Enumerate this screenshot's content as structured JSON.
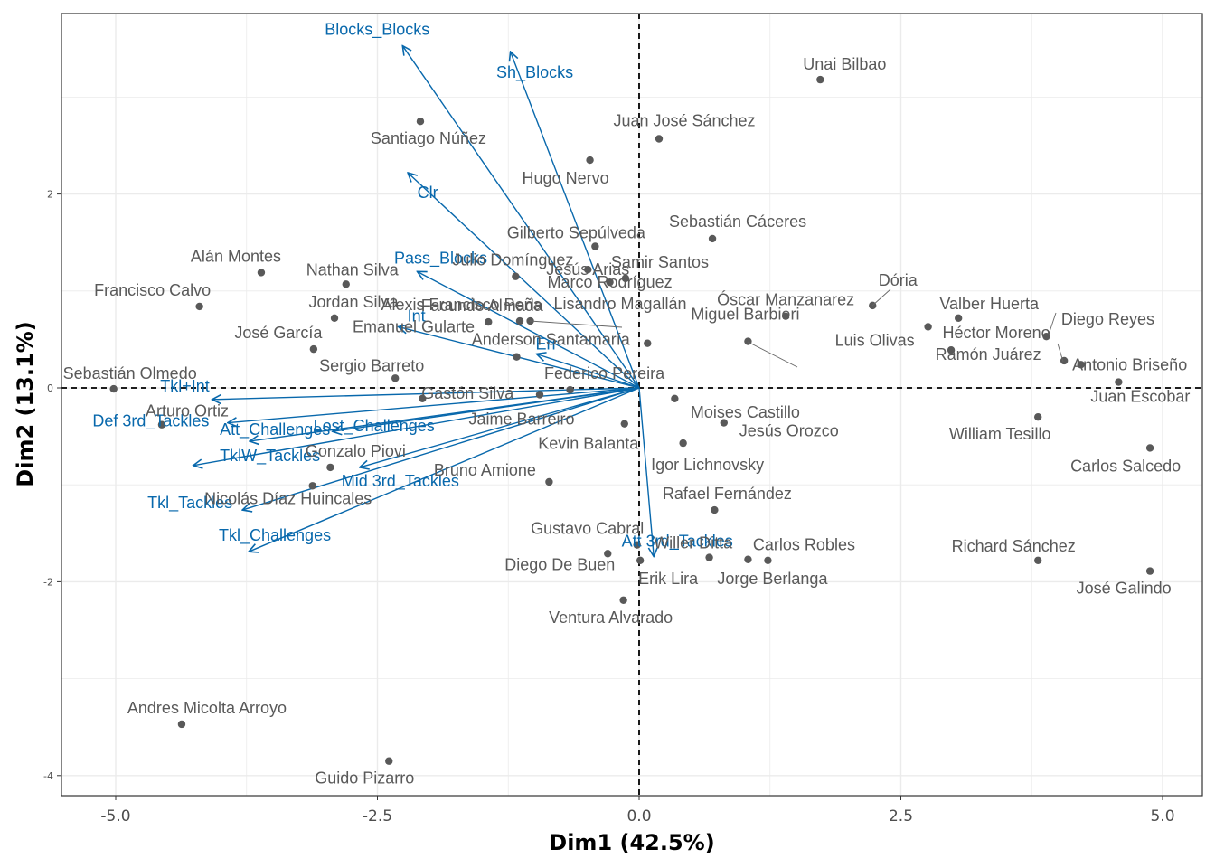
{
  "chart_data": {
    "type": "scatter",
    "subtype": "pca-biplot",
    "title": "",
    "xlabel": "Dim1 (42.5%)",
    "ylabel": "Dim2 (13.1%)",
    "xlim": [
      -5.5,
      5.4
    ],
    "ylim": [
      -4.2,
      3.85
    ],
    "x_ticks": [
      -5.0,
      -2.5,
      0.0,
      2.5,
      5.0
    ],
    "x_tick_labels": [
      "-5.0",
      "-2.5",
      "0.0",
      "2.5",
      "5.0"
    ],
    "y_ticks": [
      -4,
      -2,
      0,
      2
    ],
    "y_tick_labels": [
      "-4",
      "-2",
      "0",
      "2"
    ],
    "grid": true,
    "colors": {
      "points": "#595959",
      "labels": "#666666",
      "arrows": "#0868ac",
      "origin_lines": "#000000",
      "grid": "#ebebeb"
    },
    "points": [
      {
        "name": "Unai Bilbao",
        "x": 1.73,
        "y": 3.18
      },
      {
        "name": "Juan José Sánchez",
        "x": 0.19,
        "y": 2.57
      },
      {
        "name": "Santiago Núñez",
        "x": -2.09,
        "y": 2.75
      },
      {
        "name": "Hugo Nervo",
        "x": -0.47,
        "y": 2.35
      },
      {
        "name": "Gilberto Sepúlveda",
        "x": -0.42,
        "y": 1.46
      },
      {
        "name": "Sebastián Cáceres",
        "x": 0.7,
        "y": 1.54
      },
      {
        "name": "Julio Domínguez",
        "x": -1.18,
        "y": 1.15
      },
      {
        "name": "Samir Santos",
        "x": -0.13,
        "y": 1.13
      },
      {
        "name": "Jesús Arias",
        "x": -0.49,
        "y": 1.22
      },
      {
        "name": "Marco Rodríguez",
        "x": -0.28,
        "y": 1.09
      },
      {
        "name": "Alán Montes",
        "x": -3.61,
        "y": 1.19
      },
      {
        "name": "Nathan Silva",
        "x": -2.8,
        "y": 1.07
      },
      {
        "name": "Francisco Calvo",
        "x": -4.2,
        "y": 0.84
      },
      {
        "name": "Jordan Silva",
        "x": -2.91,
        "y": 0.72
      },
      {
        "name": "Facundo Almada",
        "x": -1.44,
        "y": 0.68
      },
      {
        "name": "Lisandro Magallán",
        "x": -1.14,
        "y": 0.69
      },
      {
        "name": "Alexis Francisco Peña",
        "x": -1.04,
        "y": 0.69
      },
      {
        "name": "Óscar Manzanarez",
        "x": 1.4,
        "y": 0.74
      },
      {
        "name": "Dória",
        "x": 2.23,
        "y": 0.85
      },
      {
        "name": "Valber Huerta",
        "x": 3.05,
        "y": 0.72
      },
      {
        "name": "Luis Olivas",
        "x": 2.76,
        "y": 0.63
      },
      {
        "name": "Diego Reyes",
        "x": 3.89,
        "y": 0.53
      },
      {
        "name": "Héctor Moreno",
        "x": 2.98,
        "y": 0.39
      },
      {
        "name": "Antonio Briseño",
        "x": 4.22,
        "y": 0.24
      },
      {
        "name": "Ramón Juárez",
        "x": 4.06,
        "y": 0.28
      },
      {
        "name": "Juan Escobar",
        "x": 4.58,
        "y": 0.06
      },
      {
        "name": "José García",
        "x": -3.11,
        "y": 0.4
      },
      {
        "name": "Emanuel Gularte",
        "x": -1.17,
        "y": 0.32
      },
      {
        "name": "Anderson Santamaría",
        "x": 0.08,
        "y": 0.46
      },
      {
        "name": "Miguel Barbieri",
        "x": 1.04,
        "y": 0.48
      },
      {
        "name": "Sergio Barreto",
        "x": -2.33,
        "y": 0.1
      },
      {
        "name": "Federico Pereira",
        "x": -0.66,
        "y": -0.02
      },
      {
        "name": "Sebastián Olmedo",
        "x": -5.02,
        "y": -0.01
      },
      {
        "name": "Gastón Silva",
        "x": -2.07,
        "y": -0.11
      },
      {
        "name": "Jaime Barreiro",
        "x": -0.95,
        "y": -0.07
      },
      {
        "name": "Moises Castillo",
        "x": 0.34,
        "y": -0.11
      },
      {
        "name": "Arturo Ortiz",
        "x": -4.56,
        "y": -0.38
      },
      {
        "name": "Kevin Balanta",
        "x": -0.14,
        "y": -0.37
      },
      {
        "name": "Jesús Orozco",
        "x": 0.81,
        "y": -0.36
      },
      {
        "name": "William Tesillo",
        "x": 3.81,
        "y": -0.3
      },
      {
        "name": "Igor Lichnovsky",
        "x": 0.42,
        "y": -0.57
      },
      {
        "name": "Carlos Salcedo",
        "x": 4.88,
        "y": -0.62
      },
      {
        "name": "Gonzalo Piovi",
        "x": -2.95,
        "y": -0.82
      },
      {
        "name": "Bruno Amione",
        "x": -0.86,
        "y": -0.97
      },
      {
        "name": "Nicolás Díaz Huincales",
        "x": -3.12,
        "y": -1.01
      },
      {
        "name": "Rafael Fernández",
        "x": 0.72,
        "y": -1.26
      },
      {
        "name": "Gustavo Cabral",
        "x": -0.02,
        "y": -1.62
      },
      {
        "name": "Willer Ditta",
        "x": 0.67,
        "y": -1.75
      },
      {
        "name": "Carlos Robles",
        "x": 1.04,
        "y": -1.77
      },
      {
        "name": "Jorge Berlanga",
        "x": 1.23,
        "y": -1.78
      },
      {
        "name": "Diego De Buen",
        "x": -0.3,
        "y": -1.71
      },
      {
        "name": "Erik Lira",
        "x": 0.01,
        "y": -1.78
      },
      {
        "name": "Richard Sánchez",
        "x": 3.81,
        "y": -1.78
      },
      {
        "name": "José Galindo",
        "x": 4.88,
        "y": -1.89
      },
      {
        "name": "Ventura Alvarado",
        "x": -0.15,
        "y": -2.19
      },
      {
        "name": "Andres Micolta Arroyo",
        "x": -4.37,
        "y": -3.47
      },
      {
        "name": "Guido Pizarro",
        "x": -2.39,
        "y": -3.85
      }
    ],
    "variables": [
      {
        "name": "Blocks_Blocks",
        "x": -2.26,
        "y": 3.53
      },
      {
        "name": "Sh_Blocks",
        "x": -1.23,
        "y": 3.47
      },
      {
        "name": "Clr",
        "x": -2.21,
        "y": 2.22
      },
      {
        "name": "Pass_Blocks",
        "x": -2.12,
        "y": 1.2
      },
      {
        "name": "Int",
        "x": -2.3,
        "y": 0.63
      },
      {
        "name": "Err",
        "x": -0.98,
        "y": 0.35
      },
      {
        "name": "Tkl+Int",
        "x": -4.08,
        "y": -0.12
      },
      {
        "name": "Def 3rd_Tackles",
        "x": -3.93,
        "y": -0.36
      },
      {
        "name": "Lost_Challenges",
        "x": -2.93,
        "y": -0.45
      },
      {
        "name": "Att_Challenges",
        "x": -3.72,
        "y": -0.55
      },
      {
        "name": "TklW_Tackles",
        "x": -4.26,
        "y": -0.8
      },
      {
        "name": "Mid 3rd_Tackles",
        "x": -2.67,
        "y": -0.82
      },
      {
        "name": "Tkl_Tackles",
        "x": -3.79,
        "y": -1.26
      },
      {
        "name": "Tkl_Challenges",
        "x": -3.73,
        "y": -1.69
      },
      {
        "name": "Att 3rd_Tackles",
        "x": 0.14,
        "y": -1.74
      }
    ]
  }
}
